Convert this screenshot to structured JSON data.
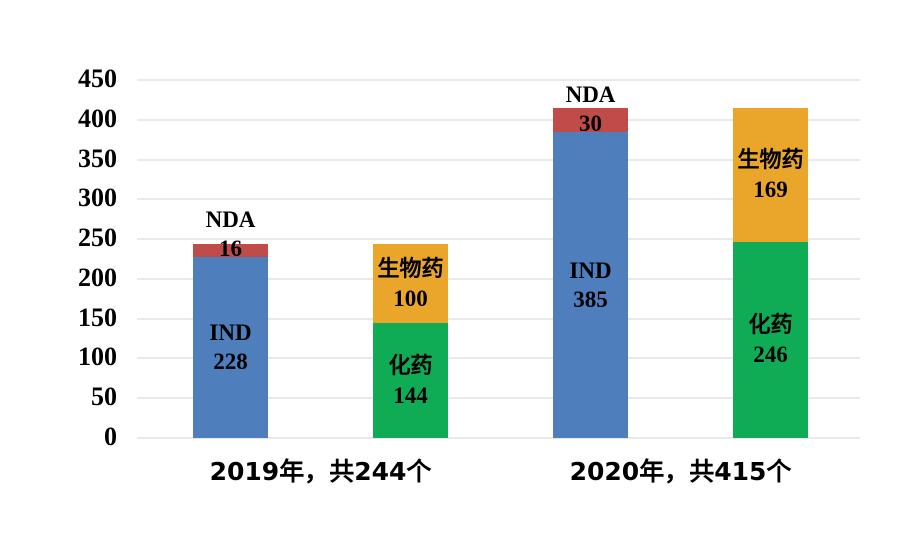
{
  "chart_data": {
    "type": "bar",
    "stacked": true,
    "title": "",
    "legend": "none",
    "grid": true,
    "y_axis": {
      "min": 0,
      "max": 450,
      "step": 50
    },
    "colors": {
      "blue": "#4f7ebd",
      "red": "#bf4c48",
      "green": "#0fab55",
      "orange": "#eaa62b",
      "gridline": "#e9e9e9",
      "text": "#000000"
    },
    "groups": [
      {
        "label": "2019年，共244个",
        "total": 244,
        "bars": [
          {
            "segments": [
              {
                "label": "IND",
                "value": 228,
                "color": "blue",
                "label_placement": "inside"
              },
              {
                "label": "NDA",
                "value": 16,
                "color": "red",
                "label_placement": "outside-top"
              }
            ]
          },
          {
            "segments": [
              {
                "label": "化药",
                "value": 144,
                "color": "green",
                "label_placement": "inside"
              },
              {
                "label": "生物药",
                "value": 100,
                "color": "orange",
                "label_placement": "inside"
              }
            ]
          }
        ]
      },
      {
        "label": "2020年，共415个",
        "total": 415,
        "bars": [
          {
            "segments": [
              {
                "label": "IND",
                "value": 385,
                "color": "blue",
                "label_placement": "inside"
              },
              {
                "label": "NDA",
                "value": 30,
                "color": "red",
                "label_placement": "outside-top"
              }
            ]
          },
          {
            "segments": [
              {
                "label": "化药",
                "value": 246,
                "color": "green",
                "label_placement": "inside"
              },
              {
                "label": "生物药",
                "value": 169,
                "color": "orange",
                "label_placement": "inside"
              }
            ]
          }
        ]
      }
    ]
  }
}
